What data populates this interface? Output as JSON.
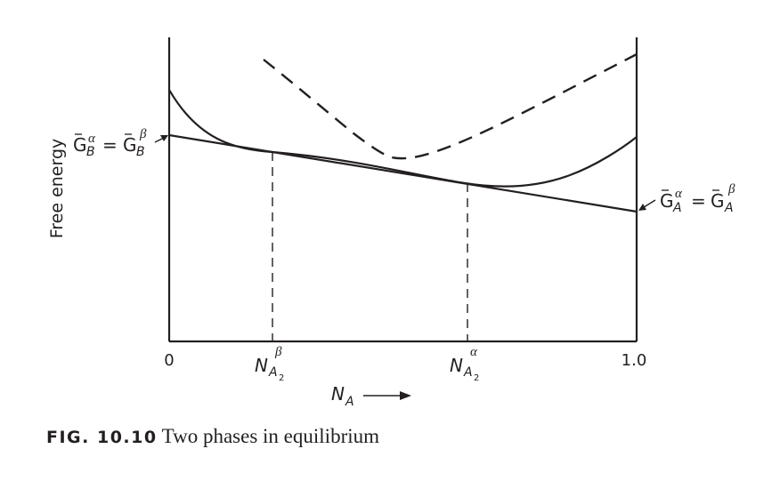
{
  "axes": {
    "y_label": "Free energy",
    "x_label": "N",
    "x_label_sub": "A",
    "x_tick_start": "0",
    "x_tick_end": "1.0"
  },
  "markers": {
    "beta": {
      "symbol": "N",
      "sub": "A",
      "subsub": "2",
      "sup": "β"
    },
    "alpha": {
      "symbol": "N",
      "sub": "A",
      "subsub": "2",
      "sup": "α"
    }
  },
  "labels": {
    "left": {
      "g": "G",
      "sub": "B",
      "sup1": "α",
      "equals": "=",
      "sup2": "β"
    },
    "right": {
      "g": "G",
      "sub": "A",
      "sup1": "α",
      "equals": "=",
      "sup2": "β"
    }
  },
  "caption": {
    "number": "FIG. 10.10",
    "text": "Two phases in equilibrium"
  },
  "colors": {
    "ink": "#231f20",
    "background": "#ffffff"
  }
}
